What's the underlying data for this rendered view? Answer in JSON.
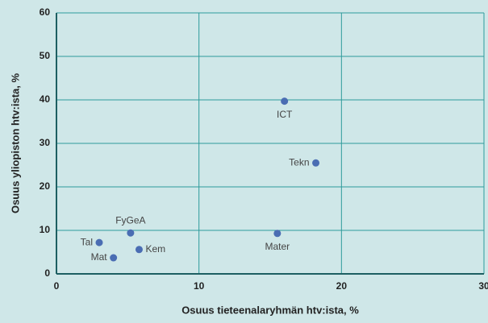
{
  "chart_data": {
    "type": "scatter",
    "x_label": "Osuus tieteenalaryhmän htv:ista, %",
    "y_label": "Osuus yliopiston htv:ista, %",
    "series": [
      {
        "color": "#4a6db3",
        "labels": [
          "ICT",
          "Tekn",
          "Mater",
          "FyGeA",
          "Tal",
          "Kem",
          "Mat"
        ],
        "x": [
          16.0,
          18.2,
          15.5,
          5.2,
          3.0,
          5.8,
          4.0
        ],
        "values": [
          39.7,
          25.5,
          9.3,
          9.4,
          7.2,
          5.6,
          3.7
        ]
      }
    ],
    "xlim": [
      0,
      30
    ],
    "xticks": [
      0,
      10,
      20,
      30
    ],
    "ylim": [
      0,
      60
    ],
    "yticks": [
      0,
      10,
      20,
      30,
      40,
      50,
      60
    ],
    "grid": true
  }
}
